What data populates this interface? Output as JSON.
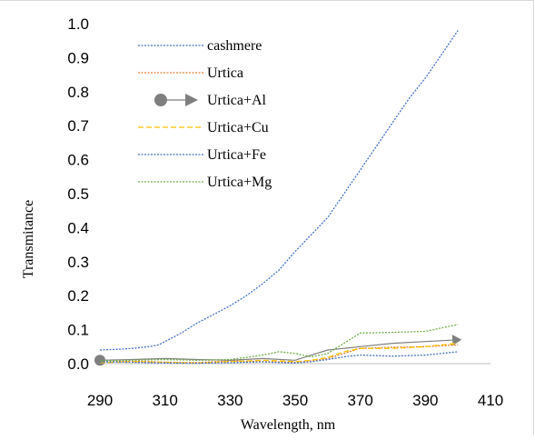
{
  "chart_data": {
    "type": "line",
    "title": "",
    "xlabel": "Wavelength, nm",
    "ylabel": "Transmitance",
    "xlim": [
      290,
      410
    ],
    "ylim": [
      0,
      1.0
    ],
    "x_ticks": [
      "290",
      "310",
      "330",
      "350",
      "370",
      "390",
      "410"
    ],
    "y_ticks": [
      "0.0",
      "0.1",
      "0.2",
      "0.3",
      "0.4",
      "0.5",
      "0.6",
      "0.7",
      "0.8",
      "0.9",
      "1.0"
    ],
    "legend_position": "top-left",
    "grid": false,
    "series": [
      {
        "name": "cashmere",
        "color": "#4472c4",
        "dash": "dotted",
        "x": [
          290,
          295,
          300,
          305,
          308,
          310,
          315,
          320,
          325,
          330,
          335,
          340,
          345,
          350,
          355,
          360,
          365,
          370,
          375,
          380,
          385,
          390,
          395,
          400
        ],
        "y": [
          0.04,
          0.042,
          0.045,
          0.05,
          0.055,
          0.065,
          0.09,
          0.12,
          0.145,
          0.17,
          0.2,
          0.235,
          0.275,
          0.33,
          0.38,
          0.43,
          0.5,
          0.57,
          0.64,
          0.71,
          0.78,
          0.84,
          0.91,
          0.98
        ]
      },
      {
        "name": "Urtica",
        "color": "#ed7d31",
        "dash": "dotted",
        "x": [
          290,
          300,
          310,
          320,
          330,
          340,
          350,
          355,
          360,
          365,
          370,
          380,
          390,
          400
        ],
        "y": [
          0.005,
          0.008,
          0.004,
          0.003,
          0.008,
          0.006,
          0.004,
          0.008,
          0.015,
          0.03,
          0.045,
          0.048,
          0.05,
          0.055
        ]
      },
      {
        "name": "Urtica+Al",
        "color": "#7f7f7f",
        "dash": "solid-markers",
        "x": [
          290,
          300,
          310,
          320,
          330,
          340,
          350,
          355,
          360,
          365,
          370,
          380,
          390,
          400
        ],
        "y": [
          0.01,
          0.012,
          0.015,
          0.012,
          0.01,
          0.015,
          0.01,
          0.025,
          0.04,
          0.045,
          0.05,
          0.06,
          0.065,
          0.07
        ]
      },
      {
        "name": "Urtica+Cu",
        "color": "#ffc000",
        "dash": "dashed",
        "x": [
          290,
          300,
          310,
          320,
          330,
          340,
          350,
          355,
          360,
          365,
          370,
          380,
          390,
          400
        ],
        "y": [
          0.003,
          0.006,
          0.004,
          0.002,
          0.006,
          0.01,
          0.006,
          0.01,
          0.018,
          0.035,
          0.045,
          0.045,
          0.05,
          0.06
        ]
      },
      {
        "name": "Urtica+Fe",
        "color": "#4472c4",
        "dash": "dotted",
        "x": [
          290,
          300,
          310,
          320,
          330,
          340,
          350,
          355,
          360,
          365,
          370,
          380,
          390,
          400
        ],
        "y": [
          0.005,
          0.004,
          0.002,
          0.001,
          0.003,
          0.005,
          0.002,
          0.006,
          0.012,
          0.02,
          0.025,
          0.022,
          0.025,
          0.035
        ]
      },
      {
        "name": "Urtica+Mg",
        "color": "#70ad47",
        "dash": "dotted",
        "x": [
          290,
          300,
          310,
          320,
          330,
          340,
          345,
          350,
          355,
          360,
          365,
          370,
          380,
          390,
          395,
          400
        ],
        "y": [
          0.008,
          0.01,
          0.012,
          0.01,
          0.012,
          0.025,
          0.035,
          0.03,
          0.02,
          0.03,
          0.06,
          0.09,
          0.092,
          0.095,
          0.105,
          0.115
        ]
      }
    ]
  }
}
